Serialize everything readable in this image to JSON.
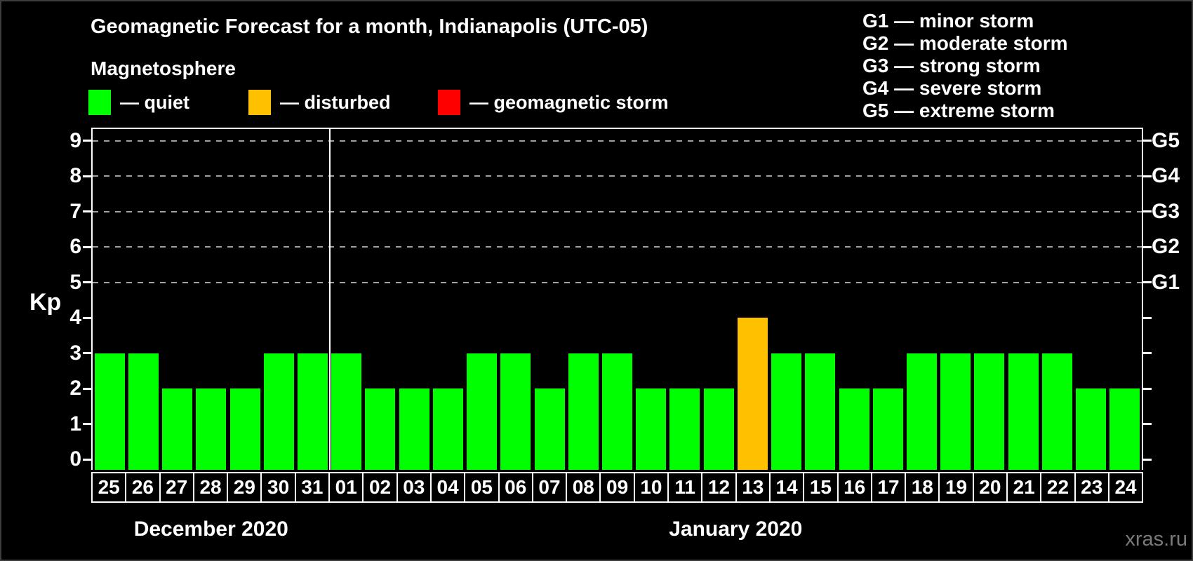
{
  "title": "Geomagnetic Forecast for a month, Indianapolis (UTC-05)",
  "subtitle": "Magnetosphere",
  "legend": {
    "items": [
      {
        "key": "quiet",
        "label": "— quiet",
        "color": "#00ff00"
      },
      {
        "key": "disturbed",
        "label": "— disturbed",
        "color": "#ffc000"
      },
      {
        "key": "storm",
        "label": "— geomagnetic storm",
        "color": "#ff0000"
      }
    ]
  },
  "storm_legend": [
    "G1 — minor storm",
    "G2 — moderate storm",
    "G3 — strong storm",
    "G4 — severe storm",
    "G5 — extreme storm"
  ],
  "watermark": "xras.ru",
  "chart_data": {
    "type": "bar",
    "title": "Geomagnetic Forecast for a month, Indianapolis (UTC-05)",
    "ylabel": "Kp",
    "ylim": [
      0,
      9.33
    ],
    "y_ticks": [
      0,
      1,
      2,
      3,
      4,
      5,
      6,
      7,
      8,
      9
    ],
    "gridlines_at": [
      5,
      6,
      7,
      8,
      9
    ],
    "grid_style": "dashed gray horizontal",
    "right_axis": [
      {
        "label": "G1",
        "kp": 5
      },
      {
        "label": "G2",
        "kp": 6
      },
      {
        "label": "G3",
        "kp": 7
      },
      {
        "label": "G4",
        "kp": 8
      },
      {
        "label": "G5",
        "kp": 9
      }
    ],
    "months": [
      {
        "label": "December 2020",
        "days": 7
      },
      {
        "label": "January 2020",
        "days": 24
      }
    ],
    "categories": [
      "25",
      "26",
      "27",
      "28",
      "29",
      "30",
      "31",
      "01",
      "02",
      "03",
      "04",
      "05",
      "06",
      "07",
      "08",
      "09",
      "10",
      "11",
      "12",
      "13",
      "14",
      "15",
      "16",
      "17",
      "18",
      "19",
      "20",
      "21",
      "22",
      "23",
      "24"
    ],
    "values": [
      3,
      3,
      2,
      2,
      2,
      3,
      3,
      3,
      2,
      2,
      2,
      3,
      3,
      2,
      3,
      3,
      2,
      2,
      2,
      4,
      3,
      3,
      2,
      2,
      3,
      3,
      3,
      3,
      3,
      2,
      2
    ],
    "statuses": [
      "quiet",
      "quiet",
      "quiet",
      "quiet",
      "quiet",
      "quiet",
      "quiet",
      "quiet",
      "quiet",
      "quiet",
      "quiet",
      "quiet",
      "quiet",
      "quiet",
      "quiet",
      "quiet",
      "quiet",
      "quiet",
      "quiet",
      "disturbed",
      "quiet",
      "quiet",
      "quiet",
      "quiet",
      "quiet",
      "quiet",
      "quiet",
      "quiet",
      "quiet",
      "quiet",
      "quiet"
    ],
    "status_colors": {
      "quiet": "#00ff00",
      "disturbed": "#ffc000",
      "storm": "#ff0000"
    }
  }
}
